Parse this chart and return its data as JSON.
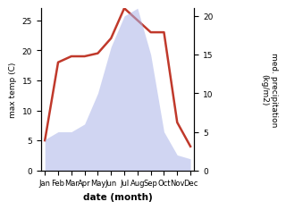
{
  "months": [
    "Jan",
    "Feb",
    "Mar",
    "Apr",
    "May",
    "Jun",
    "Jul",
    "Aug",
    "Sep",
    "Oct",
    "Nov",
    "Dec"
  ],
  "temp": [
    5,
    18,
    19,
    19,
    19.5,
    22,
    27,
    25,
    23,
    23,
    8,
    4
  ],
  "precip": [
    4,
    5,
    5,
    6,
    10,
    16,
    20,
    21,
    15,
    5,
    2,
    1.5
  ],
  "temp_color": "#c0392b",
  "precip_color": "#aab4e8",
  "ylabel_left": "max temp (C)",
  "ylabel_right": "med. precipitation\n(kg/m2)",
  "xlabel": "date (month)",
  "ylim_left": [
    0,
    27
  ],
  "ylim_right": [
    0,
    21
  ],
  "background_color": "#ffffff",
  "temp_linewidth": 1.8,
  "precip_alpha": 0.55
}
